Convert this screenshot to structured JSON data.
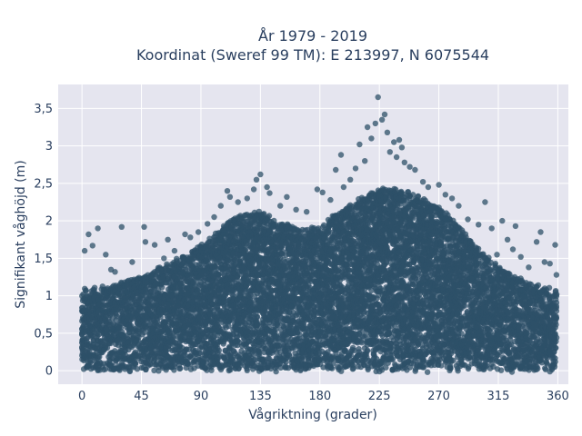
{
  "chart_data": {
    "type": "scatter",
    "title_lines": [
      "År 1979 - 2019",
      "Koordinat (Sweref 99 TM): E 213997, N 6075544"
    ],
    "xlabel": "Vågriktning (grader)",
    "ylabel": "Signifikant våghöjd (m)",
    "xlim": [
      -18,
      368
    ],
    "ylim": [
      -0.18,
      3.82
    ],
    "x_ticks": [
      0,
      45,
      90,
      135,
      180,
      225,
      270,
      315,
      360
    ],
    "y_ticks": [
      0,
      0.5,
      1,
      1.5,
      2,
      2.5,
      3,
      3.5
    ],
    "y_tick_labels": [
      "0",
      "0,5",
      "1",
      "1,5",
      "2",
      "2,5",
      "3",
      "3,5"
    ],
    "grid": true,
    "background": "#e5e5ef",
    "marker_color": "#2e5068",
    "density_envelope": {
      "x": [
        0,
        10,
        20,
        30,
        45,
        60,
        75,
        90,
        100,
        110,
        120,
        135,
        150,
        165,
        180,
        195,
        210,
        225,
        240,
        255,
        270,
        285,
        300,
        315,
        330,
        345,
        360
      ],
      "upper": [
        1.12,
        1.12,
        1.15,
        1.2,
        1.28,
        1.4,
        1.55,
        1.7,
        1.85,
        2.0,
        2.1,
        2.15,
        2.0,
        1.9,
        1.95,
        2.15,
        2.3,
        2.45,
        2.45,
        2.35,
        2.2,
        1.95,
        1.65,
        1.4,
        1.25,
        1.15,
        1.1
      ]
    },
    "outliers": [
      {
        "x": 2,
        "y": 1.6
      },
      {
        "x": 5,
        "y": 1.82
      },
      {
        "x": 8,
        "y": 1.67
      },
      {
        "x": 12,
        "y": 1.9
      },
      {
        "x": 18,
        "y": 1.55
      },
      {
        "x": 22,
        "y": 1.35
      },
      {
        "x": 25,
        "y": 1.32
      },
      {
        "x": 30,
        "y": 1.92
      },
      {
        "x": 38,
        "y": 1.45
      },
      {
        "x": 47,
        "y": 1.92
      },
      {
        "x": 48,
        "y": 1.72
      },
      {
        "x": 55,
        "y": 1.68
      },
      {
        "x": 62,
        "y": 1.5
      },
      {
        "x": 65,
        "y": 1.75
      },
      {
        "x": 70,
        "y": 1.6
      },
      {
        "x": 78,
        "y": 1.82
      },
      {
        "x": 82,
        "y": 1.78
      },
      {
        "x": 88,
        "y": 1.85
      },
      {
        "x": 95,
        "y": 1.96
      },
      {
        "x": 100,
        "y": 2.05
      },
      {
        "x": 105,
        "y": 2.2
      },
      {
        "x": 110,
        "y": 2.4
      },
      {
        "x": 112,
        "y": 2.32
      },
      {
        "x": 118,
        "y": 2.25
      },
      {
        "x": 125,
        "y": 2.3
      },
      {
        "x": 130,
        "y": 2.42
      },
      {
        "x": 132,
        "y": 2.55
      },
      {
        "x": 135,
        "y": 2.62
      },
      {
        "x": 140,
        "y": 2.45
      },
      {
        "x": 142,
        "y": 2.37
      },
      {
        "x": 150,
        "y": 2.2
      },
      {
        "x": 155,
        "y": 2.32
      },
      {
        "x": 162,
        "y": 2.15
      },
      {
        "x": 170,
        "y": 2.12
      },
      {
        "x": 178,
        "y": 2.42
      },
      {
        "x": 182,
        "y": 2.38
      },
      {
        "x": 188,
        "y": 2.28
      },
      {
        "x": 192,
        "y": 2.68
      },
      {
        "x": 196,
        "y": 2.88
      },
      {
        "x": 198,
        "y": 2.45
      },
      {
        "x": 203,
        "y": 2.55
      },
      {
        "x": 207,
        "y": 2.7
      },
      {
        "x": 210,
        "y": 3.02
      },
      {
        "x": 214,
        "y": 2.8
      },
      {
        "x": 216,
        "y": 3.25
      },
      {
        "x": 219,
        "y": 3.1
      },
      {
        "x": 222,
        "y": 3.3
      },
      {
        "x": 224,
        "y": 3.65
      },
      {
        "x": 227,
        "y": 3.35
      },
      {
        "x": 229,
        "y": 3.42
      },
      {
        "x": 231,
        "y": 3.18
      },
      {
        "x": 233,
        "y": 2.92
      },
      {
        "x": 236,
        "y": 3.05
      },
      {
        "x": 238,
        "y": 2.85
      },
      {
        "x": 240,
        "y": 3.08
      },
      {
        "x": 242,
        "y": 2.98
      },
      {
        "x": 244,
        "y": 2.78
      },
      {
        "x": 248,
        "y": 2.72
      },
      {
        "x": 252,
        "y": 2.68
      },
      {
        "x": 258,
        "y": 2.52
      },
      {
        "x": 262,
        "y": 2.45
      },
      {
        "x": 270,
        "y": 2.48
      },
      {
        "x": 275,
        "y": 2.35
      },
      {
        "x": 280,
        "y": 2.3
      },
      {
        "x": 285,
        "y": 2.2
      },
      {
        "x": 292,
        "y": 2.02
      },
      {
        "x": 300,
        "y": 1.95
      },
      {
        "x": 305,
        "y": 2.25
      },
      {
        "x": 310,
        "y": 1.9
      },
      {
        "x": 314,
        "y": 1.55
      },
      {
        "x": 318,
        "y": 2.0
      },
      {
        "x": 322,
        "y": 1.75
      },
      {
        "x": 326,
        "y": 1.62
      },
      {
        "x": 328,
        "y": 1.93
      },
      {
        "x": 332,
        "y": 1.52
      },
      {
        "x": 338,
        "y": 1.38
      },
      {
        "x": 344,
        "y": 1.72
      },
      {
        "x": 347,
        "y": 1.85
      },
      {
        "x": 350,
        "y": 1.45
      },
      {
        "x": 354,
        "y": 1.43
      },
      {
        "x": 358,
        "y": 1.68
      },
      {
        "x": 359,
        "y": 1.28
      }
    ]
  }
}
